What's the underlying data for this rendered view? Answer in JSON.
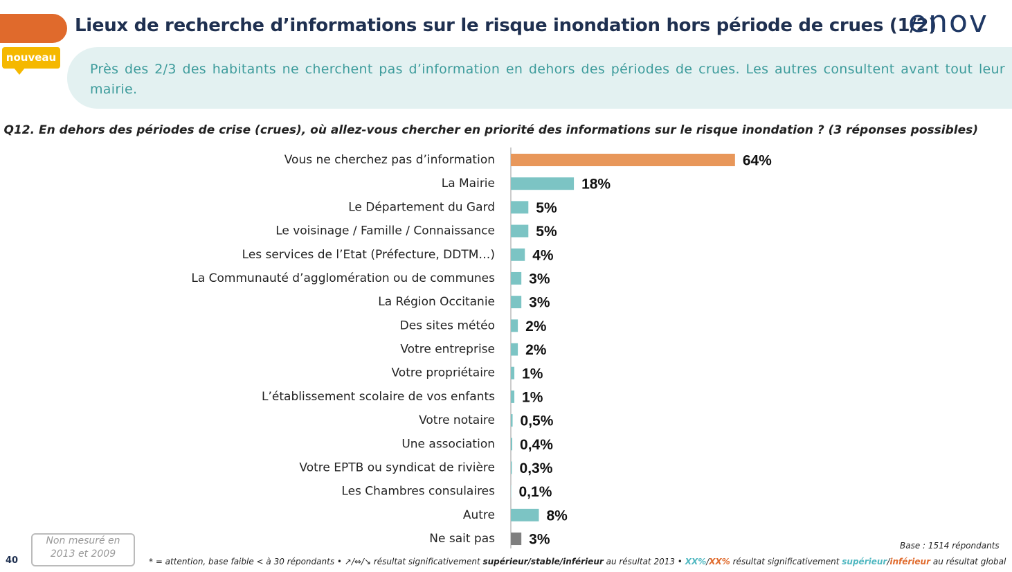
{
  "header": {
    "title": "Lieux de recherche d’informations sur le risque inondation hors période de crues (1/2)",
    "badge": "nouveau",
    "logo": "enov",
    "subtitle": "Près des 2/3 des habitants ne cherchent pas d’information en dehors des périodes de crues. Les autres consultent avant tout leur mairie."
  },
  "chart_data": {
    "type": "bar",
    "orientation": "horizontal",
    "title": "Q12. En dehors des périodes de crise (crues), où allez-vous chercher en priorité des informations sur le risque inondation ? (3 réponses possibles)",
    "categories": [
      "Vous ne cherchez pas d’information",
      "La Mairie",
      "Le Département du Gard",
      "Le voisinage / Famille / Connaissance",
      "Les services de l’Etat (Préfecture, DDTM…)",
      "La Communauté d’agglomération ou de communes",
      "La Région Occitanie",
      "Des sites météo",
      "Votre entreprise",
      "Votre propriétaire",
      "L’établissement scolaire de vos enfants",
      "Votre notaire",
      "Une association",
      "Votre EPTB ou syndicat de rivière",
      "Les Chambres consulaires",
      "Autre",
      "Ne sait pas"
    ],
    "values": [
      64,
      18,
      5,
      5,
      4,
      3,
      3,
      2,
      2,
      1,
      1,
      0.5,
      0.4,
      0.3,
      0.1,
      8,
      3
    ],
    "value_labels": [
      "64%",
      "18%",
      "5%",
      "5%",
      "4%",
      "3%",
      "3%",
      "2%",
      "2%",
      "1%",
      "1%",
      "0,5%",
      "0,4%",
      "0,3%",
      "0,1%",
      "8%",
      "3%"
    ],
    "colors": [
      "#e8975a",
      "#7cc4c4",
      "#7cc4c4",
      "#7cc4c4",
      "#7cc4c4",
      "#7cc4c4",
      "#7cc4c4",
      "#7cc4c4",
      "#7cc4c4",
      "#7cc4c4",
      "#7cc4c4",
      "#7cc4c4",
      "#7cc4c4",
      "#7cc4c4",
      "#7cc4c4",
      "#7cc4c4",
      "#7f7f7f"
    ]
  },
  "footer": {
    "page": "40",
    "note": "Non mesuré en 2013 et 2009",
    "base": "Base : 1514 répondants",
    "legend_parts": [
      "* = attention, base faible < à 30 répondants • ↗/⇔/↘ résultat significativement ",
      "supérieur/stable/inférieur",
      " au résultat 2013 • ",
      "XX%",
      "/",
      "XX%",
      " résultat significativement ",
      "supérieur",
      "/",
      "inférieur",
      " au résultat global"
    ]
  }
}
